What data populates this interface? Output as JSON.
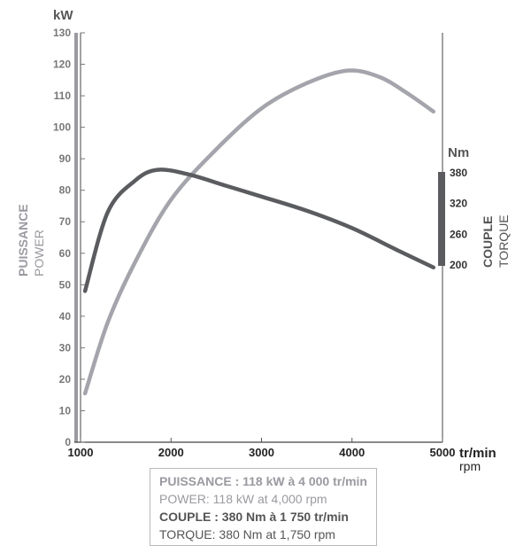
{
  "chart_data": {
    "type": "line",
    "x_label": "tr/min",
    "x_label_sub": "rpm",
    "x_ticks": [
      1000,
      2000,
      3000,
      4000,
      5000
    ],
    "x_range": [
      1000,
      5000
    ],
    "y_left": {
      "unit": "kW",
      "label_fr": "PUISSANCE",
      "label_en": "POWER",
      "range": [
        0,
        130
      ],
      "ticks": [
        0,
        10,
        20,
        30,
        40,
        50,
        60,
        70,
        80,
        90,
        100,
        110,
        120,
        130
      ]
    },
    "y_right": {
      "unit": "Nm",
      "label_fr": "COUPLE",
      "label_en": "TORQUE",
      "ticks": [
        200,
        260,
        320,
        380
      ]
    },
    "series": [
      {
        "name": "PUISSANCE",
        "axis": "left",
        "color": "#a4a4ac",
        "x": [
          1050,
          1300,
          1600,
          2000,
          2500,
          3000,
          3500,
          3950,
          4300,
          4600,
          4900
        ],
        "y": [
          15.5,
          38,
          57,
          77,
          93,
          106,
          114,
          118,
          116,
          111,
          105
        ]
      },
      {
        "name": "COUPLE",
        "axis": "left",
        "color": "#5a5c5f",
        "x": [
          1050,
          1300,
          1600,
          1850,
          2200,
          2600,
          3000,
          3500,
          4000,
          4500,
          4900
        ],
        "y": [
          48,
          73,
          83,
          86.5,
          85,
          81.5,
          78,
          73.5,
          68,
          61,
          55.5
        ]
      }
    ]
  },
  "legend": {
    "line1": "PUISSANCE : 118 kW à 4 000 tr/min",
    "line2": "POWER: 118 kW at 4,000 rpm",
    "line3": "COUPLE : 380 Nm à 1 750 tr/min",
    "line4": "TORQUE: 380 Nm at 1,750 rpm"
  },
  "colors": {
    "power": "#a4a4ac",
    "torque": "#5a5c5f",
    "axis": "#555555"
  }
}
